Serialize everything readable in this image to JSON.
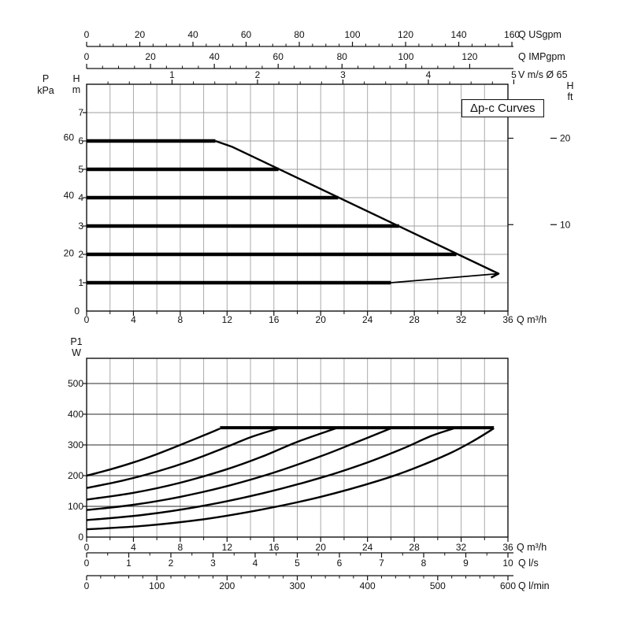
{
  "chart_data": [
    {
      "id": "head-chart",
      "type": "line",
      "title": "Δp-c Curves",
      "x_axis": {
        "unit_label": "Q m³/h",
        "min": 0,
        "max": 36,
        "major_ticks": [
          0,
          4,
          8,
          12,
          16,
          20,
          24,
          28,
          32,
          36
        ],
        "minor_step": 2
      },
      "left_axis_kpa": {
        "name_lines": [
          "P",
          "kPa"
        ],
        "ticks": [
          20,
          40,
          60
        ],
        "zero_label": "0",
        "m_per_unit": 0.10197
      },
      "left_axis_m": {
        "name_lines": [
          "H",
          "m"
        ],
        "ticks": [
          1,
          2,
          3,
          4,
          5,
          6,
          7
        ],
        "max": 8
      },
      "right_axis_ft": {
        "name_lines": [
          "H",
          "ft"
        ],
        "ticks": [
          10,
          20
        ],
        "m_per_unit": 0.3048
      },
      "top_scales": [
        {
          "unit_label": "Q USgpm",
          "ticks": [
            0,
            20,
            40,
            60,
            80,
            100,
            120,
            140,
            160
          ],
          "minor_step": 5,
          "m3h_per_unit": 0.22712
        },
        {
          "unit_label": "Q IMPgpm",
          "ticks": [
            0,
            20,
            40,
            60,
            80,
            100,
            120
          ],
          "minor_step": 5,
          "m3h_per_unit": 0.27277
        },
        {
          "unit_label": "V m/s Ø 65",
          "ticks": [
            1,
            2,
            3,
            4,
            5
          ],
          "minor_step": 0.25,
          "m3h_per_unit": 7.3
        }
      ],
      "series": [
        {
          "name": "dpc-curve-6m",
          "width": 4.5,
          "smooth": false,
          "points": [
            [
              0,
              6
            ],
            [
              11,
              6
            ]
          ]
        },
        {
          "name": "dpc-curve-5m",
          "width": 4.5,
          "smooth": false,
          "points": [
            [
              0,
              5
            ],
            [
              16.4,
              5
            ]
          ]
        },
        {
          "name": "dpc-curve-4m",
          "width": 4.5,
          "smooth": false,
          "points": [
            [
              0,
              4
            ],
            [
              21.5,
              4
            ]
          ]
        },
        {
          "name": "dpc-curve-3m",
          "width": 4.5,
          "smooth": false,
          "points": [
            [
              0,
              3
            ],
            [
              26.7,
              3
            ]
          ]
        },
        {
          "name": "dpc-curve-2m",
          "width": 4.5,
          "smooth": false,
          "points": [
            [
              0,
              2
            ],
            [
              31.6,
              2
            ]
          ]
        },
        {
          "name": "dpc-curve-1m",
          "width": 4.5,
          "smooth": false,
          "points": [
            [
              0,
              1
            ],
            [
              26,
              1
            ]
          ]
        },
        {
          "name": "min-curve-extension",
          "width": 1.8,
          "smooth": false,
          "points": [
            [
              26,
              1
            ],
            [
              35.2,
              1.32
            ]
          ]
        },
        {
          "name": "max-curve-envelope",
          "width": 2.4,
          "smooth": false,
          "points": [
            [
              11,
              6
            ],
            [
              12.4,
              5.8
            ],
            [
              35.2,
              1.32
            ],
            [
              34.55,
              1.18
            ]
          ]
        }
      ]
    },
    {
      "id": "power-chart",
      "type": "line",
      "y_axis_w": {
        "name_lines": [
          "P1",
          "W"
        ],
        "ticks": [
          100,
          200,
          300,
          400,
          500
        ],
        "zero_label": "0",
        "max": 582
      },
      "x_axis": {
        "unit_label": "Q m³/h",
        "min": 0,
        "max": 36,
        "major_ticks": [
          0,
          4,
          8,
          12,
          16,
          20,
          24,
          28,
          32,
          36
        ],
        "minor_step": 2
      },
      "bottom_scales": [
        {
          "unit_label": "Q l/s",
          "ticks": [
            0,
            1,
            2,
            3,
            4,
            5,
            6,
            7,
            8,
            9,
            10
          ],
          "minor_step": 0.5,
          "m3h_per_unit": 3.6
        },
        {
          "unit_label": "Q l/min",
          "ticks": [
            0,
            100,
            200,
            300,
            400,
            500,
            600
          ],
          "minor_step": 20,
          "m3h_per_unit": 0.06
        }
      ],
      "series": [
        {
          "name": "power-curve-6m",
          "width": 2.4,
          "smooth": true,
          "points": [
            [
              0,
              200
            ],
            [
              2,
              220
            ],
            [
              4,
              243
            ],
            [
              6,
              270
            ],
            [
              8,
              300
            ],
            [
              10,
              331
            ],
            [
              11.4,
              353
            ]
          ]
        },
        {
          "name": "power-curve-5m",
          "width": 2.4,
          "smooth": true,
          "points": [
            [
              0,
              160
            ],
            [
              3,
              183
            ],
            [
              6,
              213
            ],
            [
              9,
              250
            ],
            [
              12,
              294
            ],
            [
              14,
              325
            ],
            [
              16.4,
              354
            ]
          ]
        },
        {
          "name": "power-curve-4m",
          "width": 2.4,
          "smooth": true,
          "points": [
            [
              0,
              122
            ],
            [
              4,
              144
            ],
            [
              8,
              177
            ],
            [
              12,
              221
            ],
            [
              15,
              262
            ],
            [
              18,
              310
            ],
            [
              21.3,
              354
            ]
          ]
        },
        {
          "name": "power-curve-3m",
          "width": 2.4,
          "smooth": true,
          "points": [
            [
              0,
              88
            ],
            [
              4,
              105
            ],
            [
              8,
              131
            ],
            [
              12,
              166
            ],
            [
              16,
              210
            ],
            [
              20,
              263
            ],
            [
              23,
              308
            ],
            [
              26,
              354
            ]
          ]
        },
        {
          "name": "power-curve-2m",
          "width": 2.4,
          "smooth": true,
          "points": [
            [
              0,
              55
            ],
            [
              5,
              73
            ],
            [
              10,
              102
            ],
            [
              15,
              142
            ],
            [
              20,
              193
            ],
            [
              24,
              243
            ],
            [
              27,
              288
            ],
            [
              29.5,
              330
            ],
            [
              31.4,
              354
            ]
          ]
        },
        {
          "name": "power-curve-1m",
          "width": 2.4,
          "smooth": true,
          "points": [
            [
              0,
              25
            ],
            [
              5,
              37
            ],
            [
              10,
              58
            ],
            [
              15,
              90
            ],
            [
              20,
              131
            ],
            [
              25,
              184
            ],
            [
              28,
              224
            ],
            [
              31,
              272
            ],
            [
              33,
              312
            ],
            [
              34.8,
              354
            ]
          ]
        },
        {
          "name": "power-max-plateau",
          "width": 4,
          "smooth": false,
          "points": [
            [
              11.4,
              356
            ],
            [
              34.8,
              356
            ]
          ]
        }
      ]
    }
  ]
}
